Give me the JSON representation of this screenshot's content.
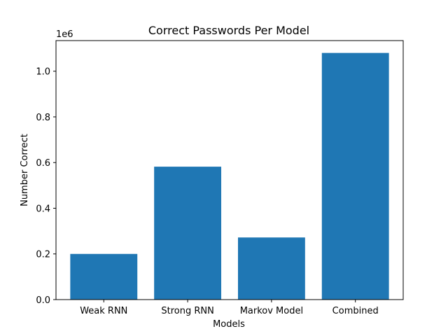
{
  "chart_data": {
    "type": "bar",
    "title": "Correct Passwords Per Model",
    "xlabel": "Models",
    "ylabel": "Number Correct",
    "offset_text": "1e6",
    "categories": [
      "Weak RNN",
      "Strong RNN",
      "Markov Model",
      "Combined"
    ],
    "values": [
      200000,
      582000,
      272000,
      1080000
    ],
    "ylim": [
      0,
      1134000
    ],
    "yticks": [
      0,
      200000,
      400000,
      600000,
      800000,
      1000000
    ],
    "ytick_labels": [
      "0.0",
      "0.2",
      "0.4",
      "0.6",
      "0.8",
      "1.0"
    ],
    "bar_color": "#1f77b4",
    "grid": false,
    "legend": "none"
  }
}
